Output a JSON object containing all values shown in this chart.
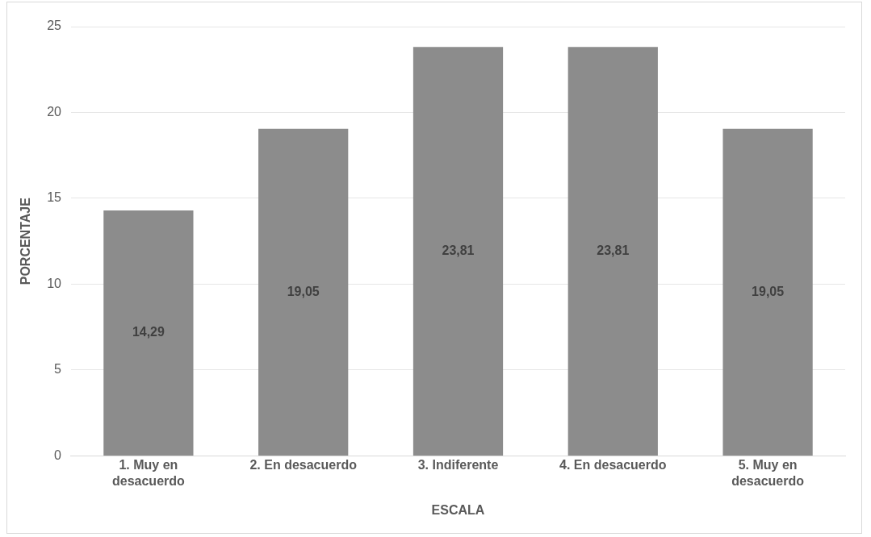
{
  "chart_data": {
    "type": "bar",
    "xlabel": "ESCALA",
    "ylabel": "PORCENTAJE",
    "categories": [
      "1. Muy en desacuerdo",
      "2. En desacuerdo",
      "3. Indiferente",
      "4. En desacuerdo",
      "5. Muy en desacuerdo"
    ],
    "values": [
      14.29,
      19.05,
      23.81,
      23.81,
      19.05
    ],
    "value_labels": [
      "14,29",
      "19,05",
      "23,81",
      "23,81",
      "19,05"
    ],
    "color": "#8c8c8c",
    "ylim": [
      0,
      25
    ],
    "yticks": [
      0,
      5,
      10,
      15,
      20,
      25
    ],
    "grid": "y",
    "legend": false
  }
}
